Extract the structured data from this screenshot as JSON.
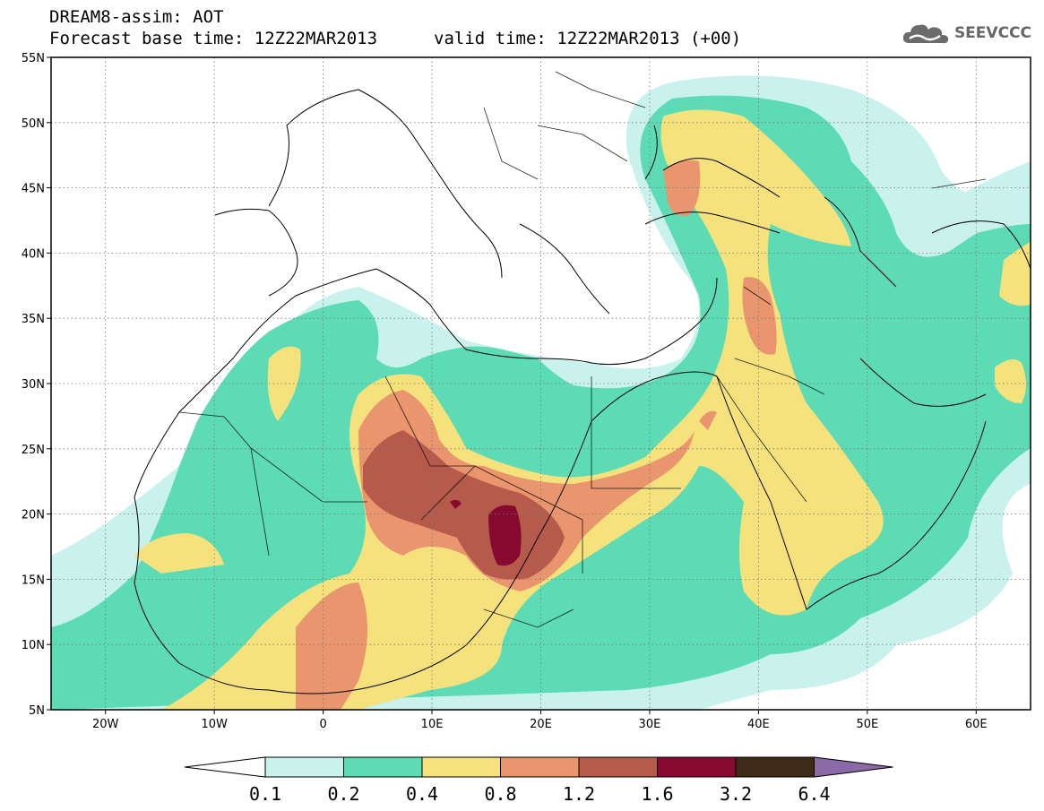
{
  "header": {
    "title_line1": "DREAM8-assim: AOT",
    "title_line2": "Forecast base time: 12Z22MAR2013",
    "valid_time": "valid time: 12Z22MAR2013 (+00)"
  },
  "logo": {
    "text": "SEEVCCC",
    "icon": "cloud-icon"
  },
  "map": {
    "lat_labels": [
      "55N",
      "50N",
      "45N",
      "40N",
      "35N",
      "30N",
      "25N",
      "20N",
      "15N",
      "10N",
      "5N"
    ],
    "lon_labels": [
      "20W",
      "10W",
      "0",
      "10E",
      "20E",
      "30E",
      "40E",
      "50E",
      "60E"
    ],
    "lat_values": [
      55,
      50,
      45,
      40,
      35,
      30,
      25,
      20,
      15,
      10,
      5
    ],
    "lon_values": [
      -20,
      -10,
      0,
      10,
      20,
      30,
      40,
      50,
      60
    ],
    "lon_range": [
      -25,
      65
    ],
    "lat_range": [
      5,
      55
    ]
  },
  "colorbar": {
    "labels": [
      "0.1",
      "0.2",
      "0.4",
      "0.8",
      "1.2",
      "1.6",
      "3.2",
      "6.4"
    ],
    "colors": [
      "#ffffff",
      "#c9f2ec",
      "#5ddbb5",
      "#f6e27c",
      "#e9966e",
      "#b65a4c",
      "#860a2f",
      "#3f2a18",
      "#8c6aa8"
    ]
  }
}
